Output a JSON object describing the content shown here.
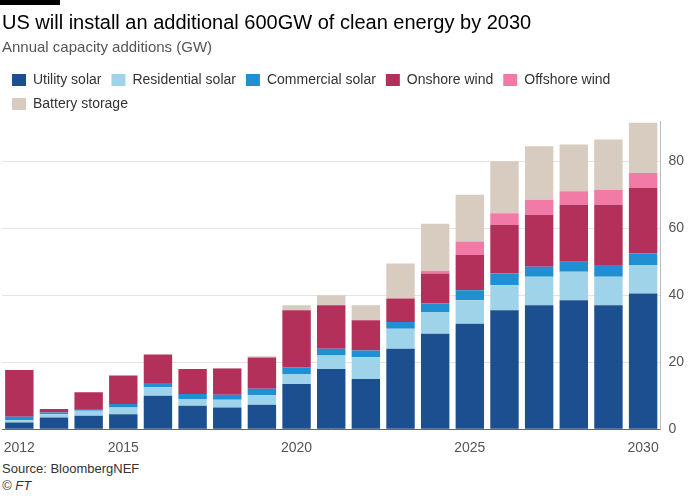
{
  "chart_data": {
    "type": "bar",
    "title": "US will install an additional 600GW of clean energy by 2030",
    "subtitle": "Annual capacity additions (GW)",
    "source": "Source: BloombergNEF",
    "credit": "© FT",
    "categories": [
      "2012",
      null,
      null,
      "2015",
      null,
      null,
      null,
      null,
      "2020",
      null,
      null,
      null,
      null,
      "2025",
      null,
      null,
      null,
      null,
      "2030"
    ],
    "series": [
      {
        "name": "Utility solar",
        "color": "#1c4f8f",
        "values": [
          2,
          3.5,
          4,
          4.5,
          10,
          7,
          6.5,
          7.3,
          13.5,
          18,
          15,
          24,
          28.5,
          31.5,
          35.5,
          37,
          38.5,
          37,
          40.5
        ]
      },
      {
        "name": "Residential solar",
        "color": "#9fd3ea",
        "values": [
          0.7,
          1,
          1.5,
          2,
          2.5,
          2,
          2.3,
          2.8,
          3,
          4,
          6.5,
          6,
          6.5,
          7,
          7.5,
          8.5,
          8.5,
          8.5,
          8.5
        ]
      },
      {
        "name": "Commercial solar",
        "color": "#2190d3",
        "values": [
          1,
          0.5,
          0.5,
          1,
          1.3,
          1.5,
          1.5,
          2,
          2,
          2,
          2,
          2,
          2.5,
          3,
          3.5,
          3,
          3,
          3.5,
          3.5
        ]
      },
      {
        "name": "Onshore wind",
        "color": "#b3305a",
        "values": [
          14,
          1,
          5,
          8.5,
          8.5,
          7.5,
          7.8,
          9.3,
          17,
          13,
          9,
          7,
          9,
          10.5,
          14.5,
          15.5,
          17,
          18,
          19.5
        ]
      },
      {
        "name": "Offshore wind",
        "color": "#f27aa6",
        "values": [
          0,
          0,
          0,
          0,
          0,
          0,
          0,
          0,
          0,
          0,
          0,
          0,
          0.8,
          4,
          3.5,
          4.5,
          4,
          4.5,
          4.5
        ]
      },
      {
        "name": "Battery storage",
        "color": "#d8cbc0",
        "values": [
          0,
          0,
          0,
          0,
          0,
          0,
          0.2,
          0.4,
          1.5,
          3,
          4.5,
          10.5,
          14,
          14,
          15.5,
          16,
          14,
          15,
          15
        ]
      }
    ],
    "stacked": true,
    "grid": true,
    "legend": "top-left",
    "ylim": [
      0,
      92
    ],
    "yticks": [
      0,
      20,
      40,
      60,
      80
    ]
  }
}
